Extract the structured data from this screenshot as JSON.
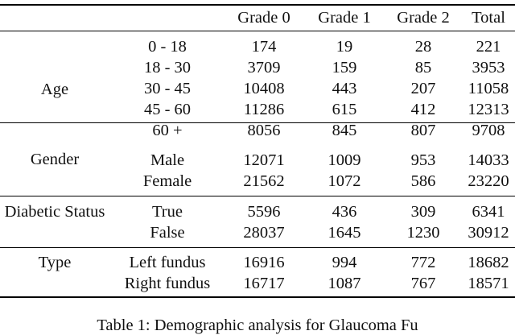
{
  "table": {
    "headers": [
      "",
      "",
      "Grade 0",
      "Grade 1",
      "Grade 2",
      "Total"
    ],
    "groups": [
      {
        "label": "Age",
        "rows": [
          {
            "sub": "0 - 18",
            "g0": "174",
            "g1": "19",
            "g2": "28",
            "total": "221"
          },
          {
            "sub": "18 - 30",
            "g0": "3709",
            "g1": "159",
            "g2": "85",
            "total": "3953"
          },
          {
            "sub": "30 - 45",
            "g0": "10408",
            "g1": "443",
            "g2": "207",
            "total": "11058"
          },
          {
            "sub": "45 - 60",
            "g0": "11286",
            "g1": "615",
            "g2": "412",
            "total": "12313"
          },
          {
            "sub": "60 +",
            "g0": "8056",
            "g1": "845",
            "g2": "807",
            "total": "9708"
          }
        ]
      },
      {
        "label": "Gender",
        "rows": [
          {
            "sub": "Male",
            "g0": "12071",
            "g1": "1009",
            "g2": "953",
            "total": "14033"
          },
          {
            "sub": "Female",
            "g0": "21562",
            "g1": "1072",
            "g2": "586",
            "total": "23220"
          }
        ]
      },
      {
        "label": "Diabetic Status",
        "rows": [
          {
            "sub": "True",
            "g0": "5596",
            "g1": "436",
            "g2": "309",
            "total": "6341"
          },
          {
            "sub": "False",
            "g0": "28037",
            "g1": "1645",
            "g2": "1230",
            "total": "30912"
          }
        ]
      },
      {
        "label": "Type",
        "rows": [
          {
            "sub": "Left fundus",
            "g0": "16916",
            "g1": "994",
            "g2": "772",
            "total": "18682"
          },
          {
            "sub": "Right fundus",
            "g0": "16717",
            "g1": "1087",
            "g2": "767",
            "total": "18571"
          }
        ]
      }
    ]
  },
  "caption": "Table 1: Demographic analysis for Glaucoma Fu"
}
